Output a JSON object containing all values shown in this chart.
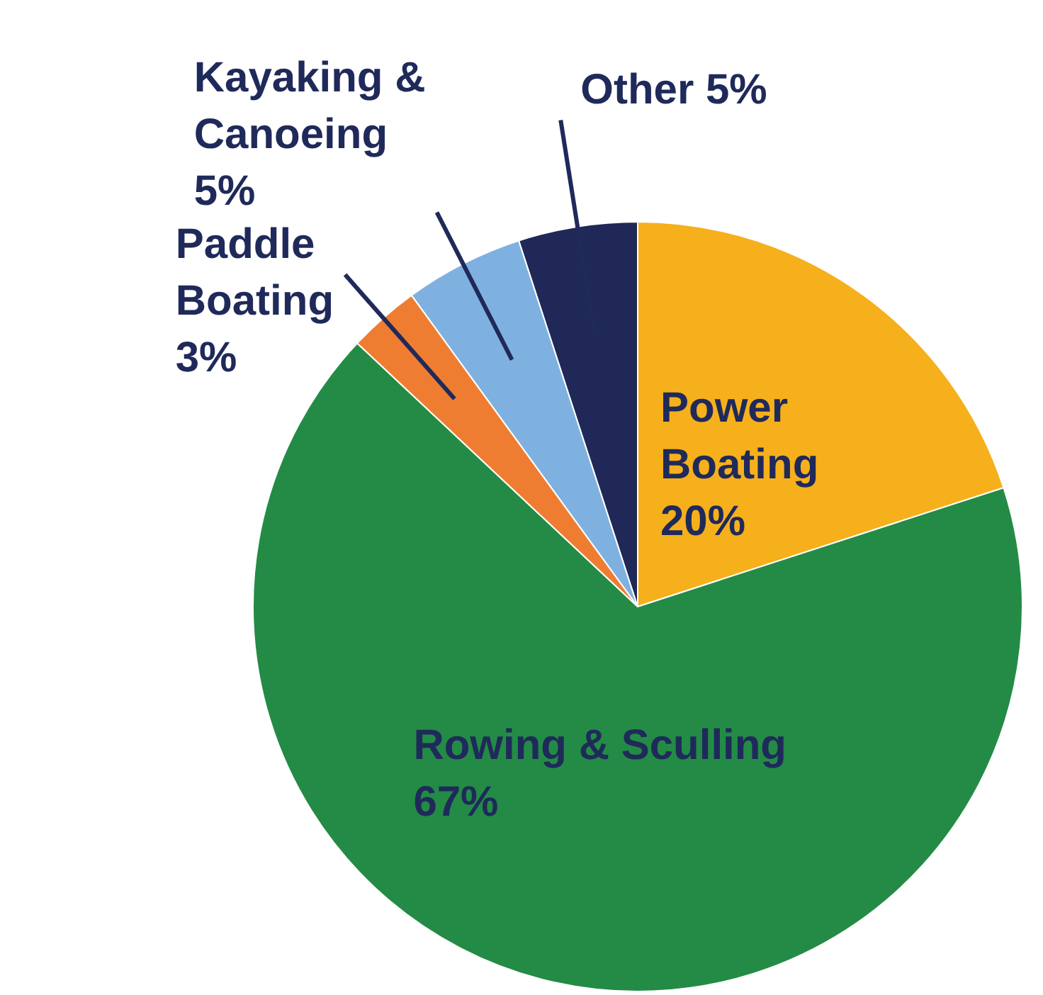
{
  "chart_data": {
    "type": "pie",
    "categories": [
      "Power Boating",
      "Rowing & Sculling",
      "Paddle Boating",
      "Kayaking & Canoeing",
      "Other"
    ],
    "values": [
      20,
      67,
      3,
      5,
      5
    ],
    "value_labels": [
      "20%",
      "67%",
      "3%",
      "5%",
      "5%"
    ],
    "colors": [
      "#f6b01c",
      "#238b45",
      "#ef7d31",
      "#7fb1e0",
      "#1f2857"
    ]
  }
}
